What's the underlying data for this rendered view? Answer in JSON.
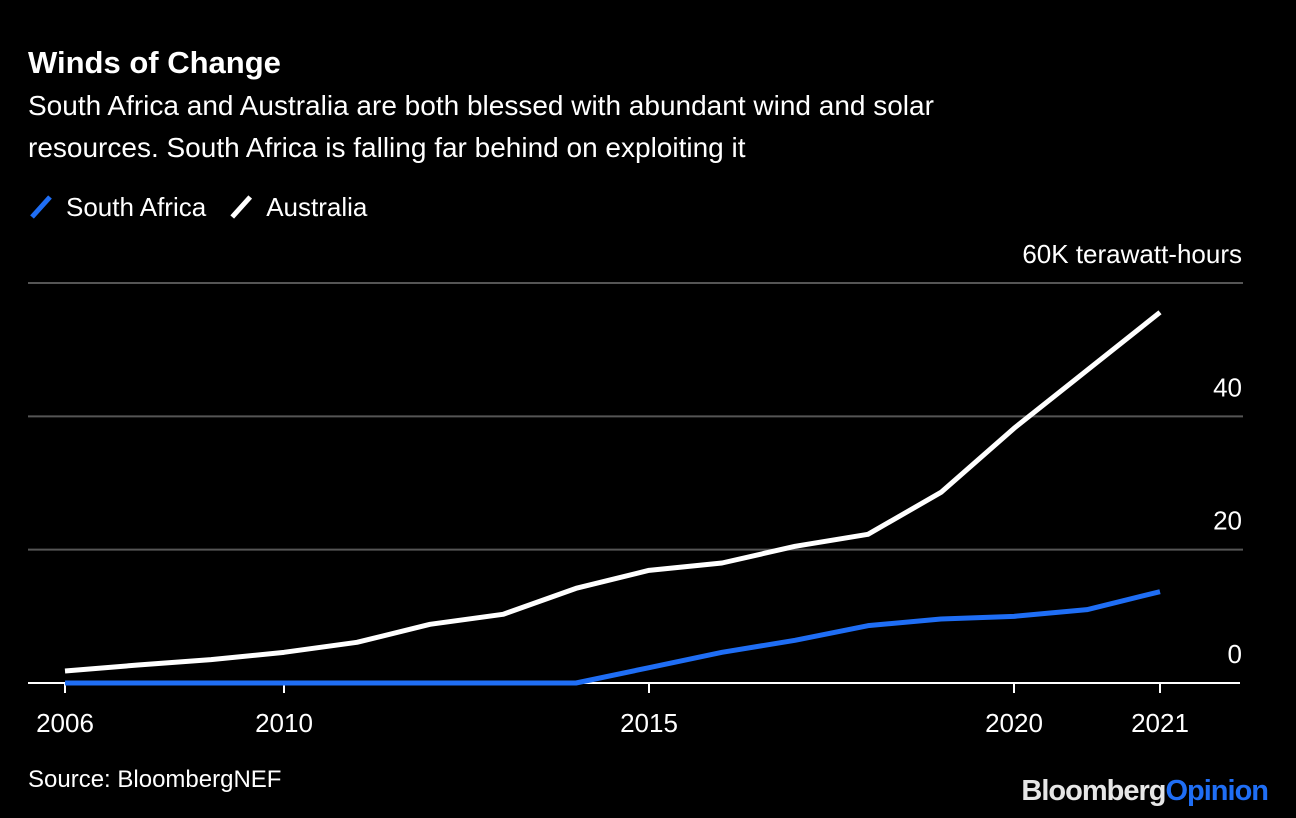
{
  "chart_data": {
    "type": "line",
    "title": "Winds of Change",
    "subtitle": [
      "South Africa and Australia are both blessed with abundant wind and solar",
      "resources. South Africa is falling far behind on exploiting it"
    ],
    "categories": [
      "2006",
      null,
      null,
      "2010",
      null,
      null,
      null,
      null,
      "2015",
      null,
      null,
      null,
      null,
      "2020",
      null,
      "2021"
    ],
    "series": [
      {
        "name": "South Africa",
        "color": "#1f6ef5",
        "values": [
          0,
          0,
          0,
          0,
          0,
          0,
          0,
          0,
          2.3,
          4.6,
          6.4,
          8.6,
          9.6,
          10.0,
          11.0,
          13.7
        ]
      },
      {
        "name": "Australia",
        "color": "#ffffff",
        "values": [
          1.8,
          2.7,
          3.5,
          4.6,
          6.1,
          8.8,
          10.3,
          14.2,
          16.9,
          18.0,
          20.5,
          22.3,
          28.6,
          38.2,
          46.9,
          55.6
        ]
      }
    ],
    "ylim": [
      0,
      60
    ],
    "yticks": [
      0,
      20,
      40,
      {
        "value": 60,
        "label": "60K terawatt-hours"
      }
    ],
    "grid": true,
    "source": "Source: BloombergNEF",
    "brand": [
      "Bloomberg",
      "Opinion"
    ]
  }
}
